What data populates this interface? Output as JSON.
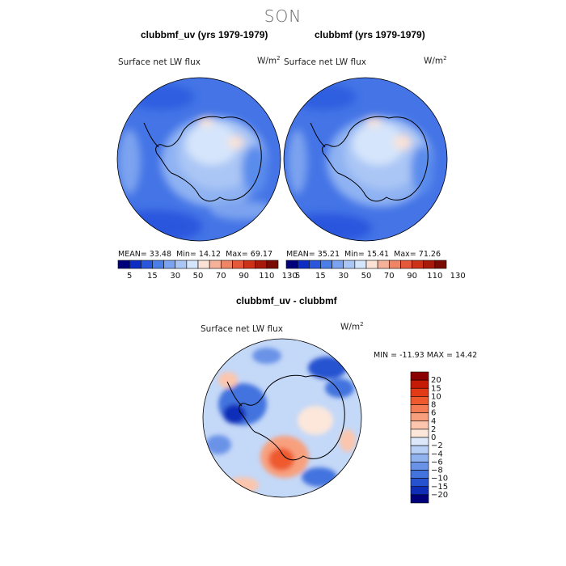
{
  "suptitle": "SON",
  "panels": [
    {
      "title": "clubbmf_uv (yrs 1979-1979)",
      "field_label": "Surface net LW flux",
      "units_base": "W/m",
      "units_exp": "2",
      "mean_label": "MEAN=",
      "mean": "33.48",
      "min_label": "Min=",
      "min": "14.12",
      "max_label": "Max=",
      "max": "69.17"
    },
    {
      "title": "clubbmf (yrs 1979-1979)",
      "field_label": "Surface net LW flux",
      "units_base": "W/m",
      "units_exp": "2",
      "mean_label": "MEAN=",
      "mean": "35.21",
      "min_label": "Min=",
      "min": "15.41",
      "max_label": "Max=",
      "max": "71.26"
    }
  ],
  "diff_panel": {
    "title": "clubbmf_uv - clubbmf",
    "field_label": "Surface net LW flux",
    "units_base": "W/m",
    "units_exp": "2",
    "stats": "MIN = -11.93 MAX =  14.42"
  },
  "chart_data": [
    {
      "type": "heatmap",
      "projection": "south-polar stereographic",
      "title": "clubbmf_uv (yrs 1979-1979)",
      "field": "Surface net LW flux",
      "units": "W/m2",
      "mean": 33.48,
      "min": 14.12,
      "max": 69.17,
      "colorbar_ticks": [
        "5",
        "15",
        "30",
        "50",
        "70",
        "90",
        "110",
        "130"
      ]
    },
    {
      "type": "heatmap",
      "projection": "south-polar stereographic",
      "title": "clubbmf (yrs 1979-1979)",
      "field": "Surface net LW flux",
      "units": "W/m2",
      "mean": 35.21,
      "min": 15.41,
      "max": 71.26,
      "colorbar_ticks": [
        "5",
        "15",
        "30",
        "50",
        "70",
        "90",
        "110",
        "130"
      ]
    },
    {
      "type": "heatmap",
      "projection": "south-polar stereographic",
      "title": "clubbmf_uv - clubbmf",
      "field": "Surface net LW flux",
      "units": "W/m2",
      "min": -11.93,
      "max": 14.42,
      "colorbar_ticks": [
        "20",
        "15",
        "10",
        "8",
        "6",
        "4",
        "2",
        "0",
        "−2",
        "−4",
        "−6",
        "−8",
        "−10",
        "−15",
        "−20"
      ]
    }
  ],
  "colors": {
    "main_scale": [
      "#00007a",
      "#0d2cc4",
      "#2a56de",
      "#4a7fe8",
      "#7ba3ef",
      "#aac6f5",
      "#d5e5fb",
      "#fbe2d4",
      "#f5b199",
      "#ee8566",
      "#e5583a",
      "#cc3217",
      "#a7190a",
      "#7a0a04"
    ],
    "diff_scale": [
      "#8b0000",
      "#c41a06",
      "#e13a14",
      "#ee5a2e",
      "#f47c54",
      "#f8a07e",
      "#fbc6ad",
      "#fce7da",
      "#dde9fb",
      "#b9d0f6",
      "#90b2ef",
      "#6a93e7",
      "#4373de",
      "#2652d0",
      "#0f2eb8",
      "#00007a"
    ]
  }
}
